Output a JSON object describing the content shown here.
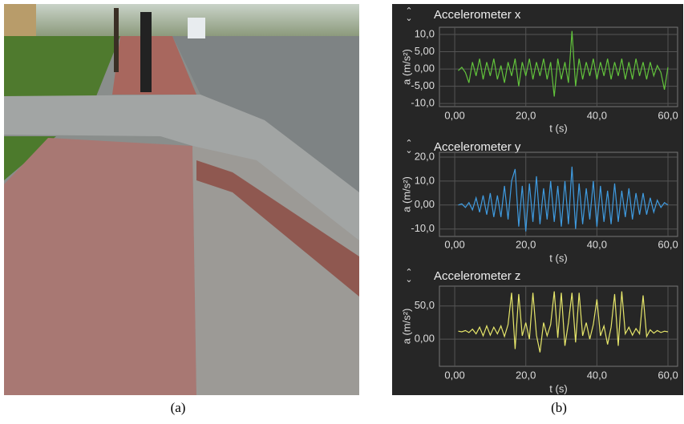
{
  "captions": [
    "(a)",
    "(b)"
  ],
  "chart_data": [
    {
      "type": "line",
      "title": "Accelerometer x",
      "xlabel": "t (s)",
      "ylabel": "a (m/s²)",
      "color": "#62c43c",
      "grid": true,
      "xlim": [
        -4.3,
        62.7
      ],
      "ylim": [
        -10.9,
        12.1
      ],
      "xticks": [
        {
          "value": 0,
          "label": "0,00"
        },
        {
          "value": 20,
          "label": "20,0"
        },
        {
          "value": 40,
          "label": "40,0"
        },
        {
          "value": 60,
          "label": "60,0"
        }
      ],
      "yticks": [
        {
          "value": -10,
          "label": "-10,0"
        },
        {
          "value": -5,
          "label": "-5,00"
        },
        {
          "value": 0,
          "label": "0,00"
        },
        {
          "value": 5,
          "label": "5,00"
        },
        {
          "value": 10,
          "label": "10,0"
        }
      ],
      "x": [
        1,
        2,
        3,
        4,
        5,
        6,
        7,
        8,
        9,
        10,
        11,
        12,
        13,
        14,
        15,
        16,
        17,
        18,
        19,
        20,
        21,
        22,
        23,
        24,
        25,
        26,
        27,
        28,
        29,
        30,
        31,
        32,
        33,
        34,
        35,
        36,
        37,
        38,
        39,
        40,
        41,
        42,
        43,
        44,
        45,
        46,
        47,
        48,
        49,
        50,
        51,
        52,
        53,
        54,
        55,
        56,
        57,
        58,
        59,
        60
      ],
      "values": [
        -0.5,
        0.5,
        -1,
        -4,
        2,
        -2,
        3,
        -3,
        2,
        -2,
        3,
        -3,
        1,
        -4,
        2,
        -2,
        3,
        -5,
        2,
        -2,
        3,
        -3,
        2,
        -2,
        3,
        -3,
        2,
        -8,
        3,
        -3,
        2,
        -4,
        11,
        -5,
        3,
        -3,
        2,
        -2,
        3,
        -3,
        2,
        -2,
        3,
        -3,
        2,
        -2,
        3,
        -3,
        2,
        -3,
        3,
        -2,
        2,
        -3,
        2,
        -2,
        1,
        -1,
        -6,
        0.5
      ]
    },
    {
      "type": "line",
      "title": "Accelerometer y",
      "xlabel": "t (s)",
      "ylabel": "a (m/s²)",
      "color": "#3f9be0",
      "grid": true,
      "xlim": [
        -4.3,
        62.7
      ],
      "ylim": [
        -13.1,
        22
      ],
      "xticks": [
        {
          "value": 0,
          "label": "0,00"
        },
        {
          "value": 20,
          "label": "20,0"
        },
        {
          "value": 40,
          "label": "40,0"
        },
        {
          "value": 60,
          "label": "60,0"
        }
      ],
      "yticks": [
        {
          "value": -10,
          "label": "-10,0"
        },
        {
          "value": 0,
          "label": "0,00"
        },
        {
          "value": 10,
          "label": "10,0"
        },
        {
          "value": 20,
          "label": "20,0"
        }
      ],
      "x": [
        1,
        2,
        3,
        4,
        5,
        6,
        7,
        8,
        9,
        10,
        11,
        12,
        13,
        14,
        15,
        16,
        17,
        18,
        19,
        20,
        21,
        22,
        23,
        24,
        25,
        26,
        27,
        28,
        29,
        30,
        31,
        32,
        33,
        34,
        35,
        36,
        37,
        38,
        39,
        40,
        41,
        42,
        43,
        44,
        45,
        46,
        47,
        48,
        49,
        50,
        51,
        52,
        53,
        54,
        55,
        56,
        57,
        58,
        59,
        60
      ],
      "values": [
        0,
        0.5,
        -1,
        1,
        -2,
        3,
        -3,
        4,
        -4,
        5,
        -5,
        4,
        -5,
        8,
        -6,
        10,
        15,
        -9,
        8,
        -11,
        9,
        -7,
        12,
        -8,
        7,
        -6,
        10,
        -7,
        8,
        -9,
        10,
        -8,
        16,
        -10,
        9,
        -8,
        7,
        -6,
        10,
        -9,
        8,
        -7,
        6,
        -8,
        9,
        -7,
        6,
        -5,
        7,
        -6,
        5,
        -4,
        5,
        -4,
        3,
        -3,
        2,
        -1,
        1,
        0
      ]
    },
    {
      "type": "line",
      "title": "Accelerometer z",
      "xlabel": "t (s)",
      "ylabel": "a (m/s²)",
      "color": "#e6e66a",
      "grid": true,
      "xlim": [
        -4.3,
        62.7
      ],
      "ylim": [
        -41,
        80
      ],
      "xticks": [
        {
          "value": 0,
          "label": "0,00"
        },
        {
          "value": 20,
          "label": "20,0"
        },
        {
          "value": 40,
          "label": "40,0"
        },
        {
          "value": 60,
          "label": "60,0"
        }
      ],
      "yticks": [
        {
          "value": 0,
          "label": "0,00"
        },
        {
          "value": 50,
          "label": "50,0"
        }
      ],
      "x": [
        1,
        2,
        3,
        4,
        5,
        6,
        7,
        8,
        9,
        10,
        11,
        12,
        13,
        14,
        15,
        16,
        17,
        18,
        19,
        20,
        21,
        22,
        23,
        24,
        25,
        26,
        27,
        28,
        29,
        30,
        31,
        32,
        33,
        34,
        35,
        36,
        37,
        38,
        39,
        40,
        41,
        42,
        43,
        44,
        45,
        46,
        47,
        48,
        49,
        50,
        51,
        52,
        53,
        54,
        55,
        56,
        57,
        58,
        59,
        60
      ],
      "values": [
        12,
        11,
        13,
        10,
        15,
        8,
        18,
        5,
        20,
        6,
        18,
        8,
        20,
        4,
        22,
        70,
        -15,
        68,
        5,
        25,
        0,
        70,
        6,
        -20,
        25,
        5,
        22,
        72,
        2,
        70,
        -10,
        25,
        70,
        -5,
        70,
        5,
        25,
        0,
        22,
        60,
        5,
        20,
        -8,
        18,
        68,
        -10,
        72,
        8,
        18,
        6,
        16,
        8,
        66,
        4,
        14,
        9,
        13,
        10,
        12,
        11
      ]
    }
  ]
}
